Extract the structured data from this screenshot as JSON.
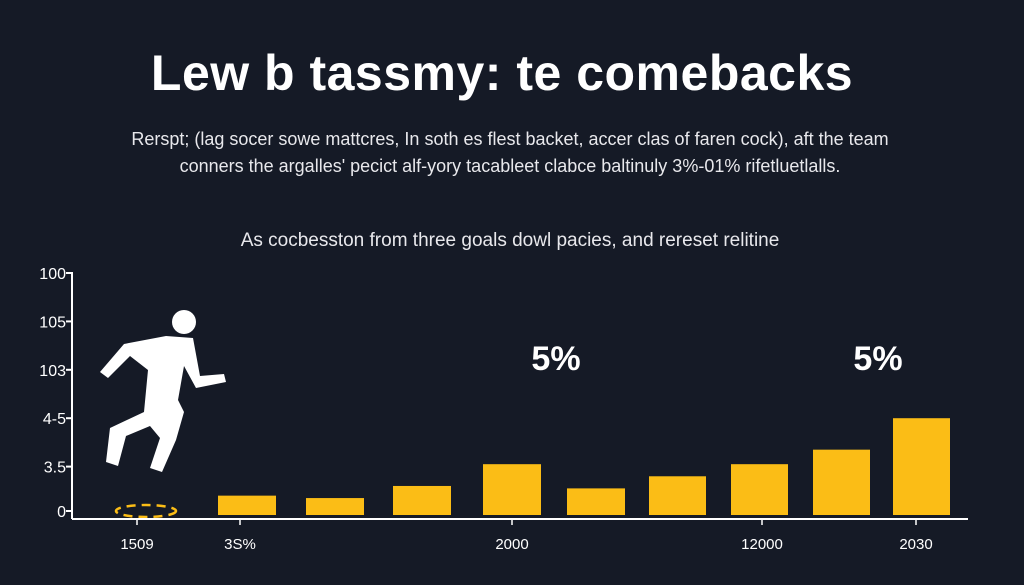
{
  "chart_data": {
    "type": "bar",
    "title": "Lew b tassmy: te comebacks",
    "subtitle_lines": [
      "Rerspt; (lag socer sowe mattcres, In soth es flest backet, accer clas of faren cock), aft the team",
      "conners the argalles' pecict alf-yory tacableet clabce baltinuly 3%-01% rifetluetlalls."
    ],
    "caption": "As cocbesston from three goals dowl pacies, and rereset relitine",
    "y_tick_labels": [
      "100",
      "105",
      "103",
      "4-5",
      "3.5",
      "0"
    ],
    "y_tick_values": [
      5,
      4,
      3,
      2,
      1,
      0
    ],
    "ylim": [
      0,
      5
    ],
    "values": [
      0.4,
      0.35,
      0.6,
      1.05,
      0.55,
      0.8,
      1.05,
      1.35,
      2.0
    ],
    "x_tick_labels": [
      {
        "label": "1509",
        "after_bar": -1
      },
      {
        "label": "3S%",
        "after_bar": 0
      },
      {
        "label": "2000",
        "after_bar": 3
      },
      {
        "label": "12000",
        "after_bar": 6
      },
      {
        "label": "2030",
        "after_bar": 8
      }
    ],
    "annotations": [
      {
        "text": "5%",
        "bar": 3
      },
      {
        "text": "5%",
        "bar": 8
      }
    ],
    "bar_color": "#fbbd16",
    "grid": false
  },
  "icons": {
    "figure": "running-player-silhouette",
    "marker": "dashed-ring-marker"
  }
}
